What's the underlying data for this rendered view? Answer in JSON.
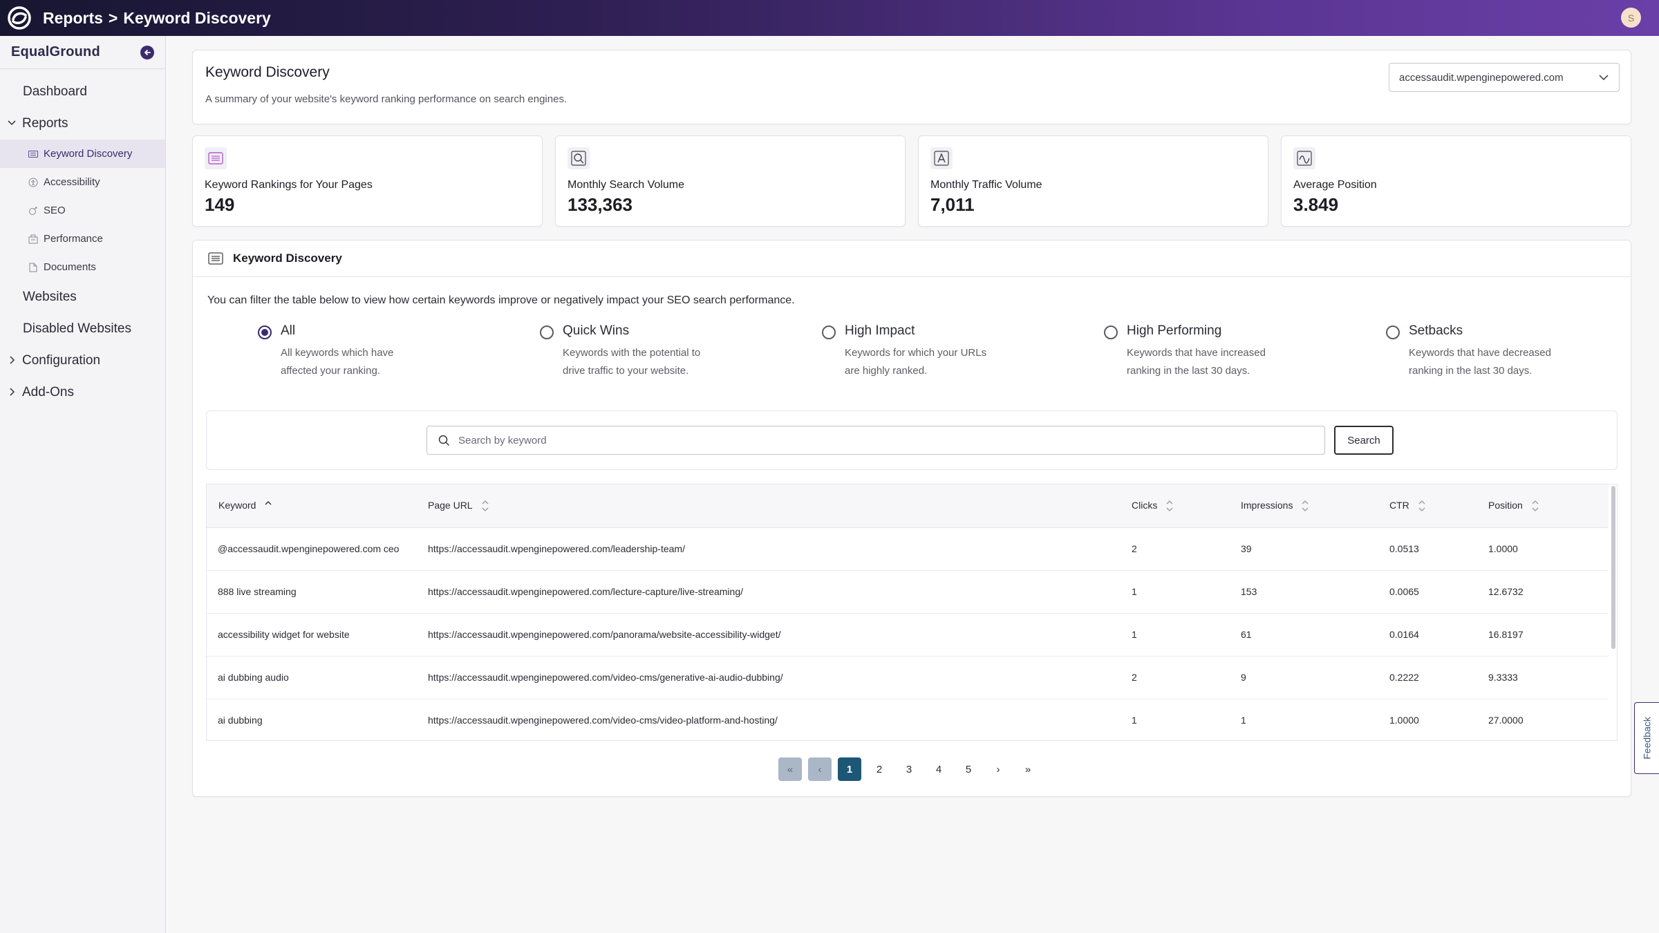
{
  "topbar": {
    "breadcrumb": [
      "Reports",
      ">",
      "Keyword Discovery"
    ],
    "avatar_initial": "S"
  },
  "sidebar": {
    "brand": "EqualGround",
    "items": {
      "dashboard": "Dashboard",
      "reports": "Reports",
      "keyword_discovery": "Keyword Discovery",
      "accessibility": "Accessibility",
      "seo": "SEO",
      "performance": "Performance",
      "documents": "Documents",
      "websites": "Websites",
      "disabled_websites": "Disabled Websites",
      "configuration": "Configuration",
      "add_ons": "Add-Ons"
    }
  },
  "header": {
    "title": "Keyword Discovery",
    "subtitle": "A summary of your website's keyword ranking performance on search engines.",
    "site_select": "accessaudit.wpenginepowered.com"
  },
  "stats": [
    {
      "label": "Keyword Rankings for Your Pages",
      "value": "149"
    },
    {
      "label": "Monthly Search Volume",
      "value": "133,363"
    },
    {
      "label": "Monthly Traffic Volume",
      "value": "7,011"
    },
    {
      "label": "Average Position",
      "value": "3.849"
    }
  ],
  "keyword_discovery": {
    "title": "Keyword Discovery",
    "description": "You can filter the table below to view how certain keywords improve or negatively impact your SEO search performance.",
    "filters": [
      {
        "title": "All",
        "desc": "All keywords which have affected your ranking."
      },
      {
        "title": "Quick Wins",
        "desc": "Keywords with the potential to drive traffic to your website."
      },
      {
        "title": "High Impact",
        "desc": "Keywords for which your URLs are highly ranked."
      },
      {
        "title": "High Performing",
        "desc": "Keywords that have increased ranking in the last 30 days."
      },
      {
        "title": "Setbacks",
        "desc": "Keywords that have decreased ranking in the last 30 days."
      }
    ],
    "search": {
      "placeholder": "Search by keyword",
      "button": "Search"
    },
    "table": {
      "headers": {
        "keyword": "Keyword",
        "url": "Page URL",
        "clicks": "Clicks",
        "impressions": "Impressions",
        "ctr": "CTR",
        "position": "Position"
      },
      "rows": [
        {
          "keyword": "@accessaudit.wpenginepowered.com ceo",
          "url": "https://accessaudit.wpenginepowered.com/leadership-team/",
          "clicks": "2",
          "impressions": "39",
          "ctr": "0.0513",
          "position": "1.0000"
        },
        {
          "keyword": "888 live streaming",
          "url": "https://accessaudit.wpenginepowered.com/lecture-capture/live-streaming/",
          "clicks": "1",
          "impressions": "153",
          "ctr": "0.0065",
          "position": "12.6732"
        },
        {
          "keyword": "accessibility widget for website",
          "url": "https://accessaudit.wpenginepowered.com/panorama/website-accessibility-widget/",
          "clicks": "1",
          "impressions": "61",
          "ctr": "0.0164",
          "position": "16.8197"
        },
        {
          "keyword": "ai dubbing audio",
          "url": "https://accessaudit.wpenginepowered.com/video-cms/generative-ai-audio-dubbing/",
          "clicks": "2",
          "impressions": "9",
          "ctr": "0.2222",
          "position": "9.3333"
        },
        {
          "keyword": "ai dubbing",
          "url": "https://accessaudit.wpenginepowered.com/video-cms/video-platform-and-hosting/",
          "clicks": "1",
          "impressions": "1",
          "ctr": "1.0000",
          "position": "27.0000"
        }
      ]
    },
    "pagination": {
      "first": "«",
      "prev": "‹",
      "pages": [
        "1",
        "2",
        "3",
        "4",
        "5"
      ],
      "next": "›",
      "last": "»"
    }
  },
  "feedback": "Feedback"
}
